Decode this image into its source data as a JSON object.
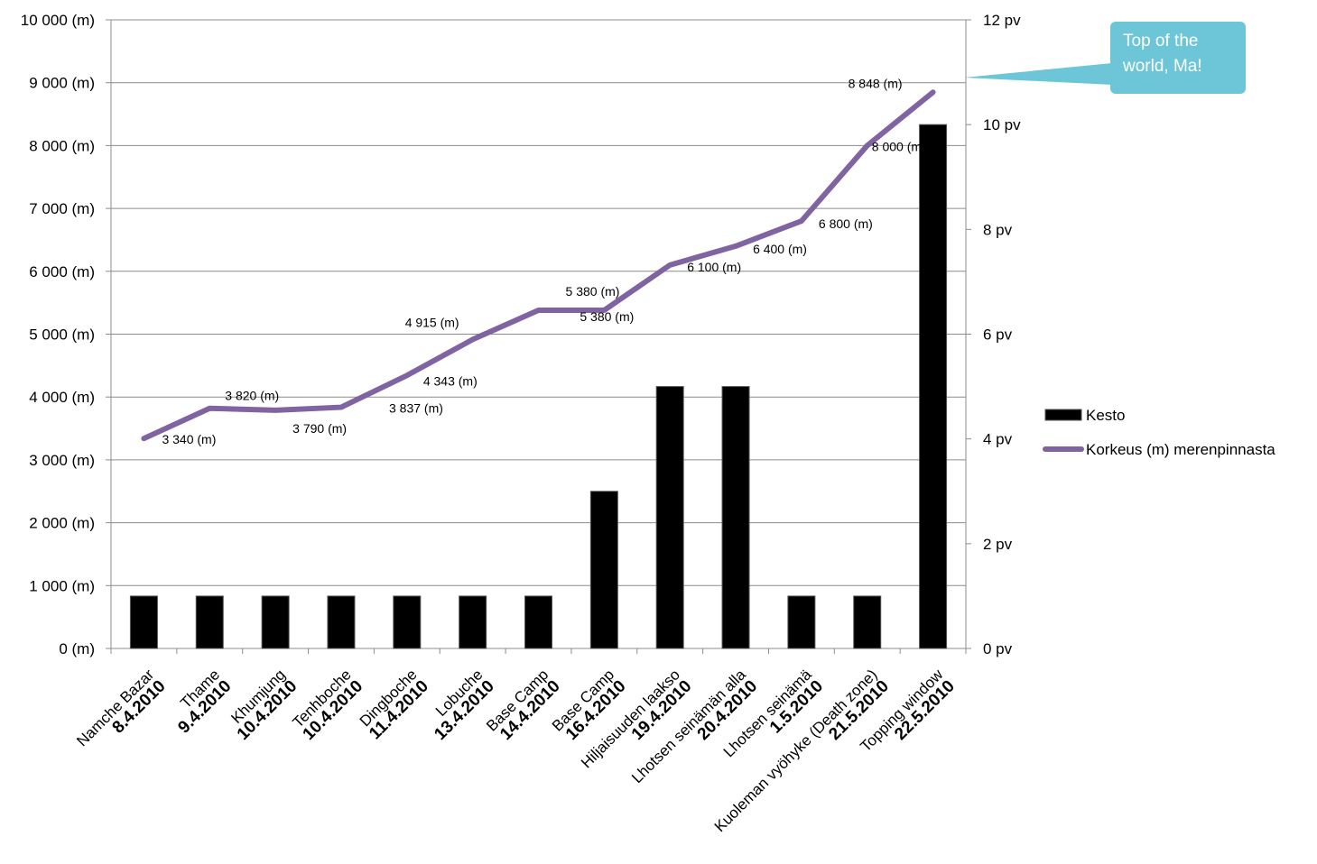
{
  "chart_data": {
    "type": "bar-line",
    "categories": [
      "Namche Bazar",
      "Thame",
      "Khumjung",
      "Tenhboche",
      "Dingboche",
      "Lobuche",
      "Base Camp",
      "Base Camp",
      "Hiljaisuuden laakso",
      "Lhotsen seinämän alla",
      "Lhotsen seinämä",
      "Kuoleman vyöhyke (Death zone)",
      "Topping window"
    ],
    "dates": [
      "8.4.2010",
      "9.4.2010",
      "10.4.2010",
      "10.4.2010",
      "11.4.2010",
      "13.4.2010",
      "14.4.2010",
      "16.4.2010",
      "19.4.2010",
      "20.4.2010",
      "1.5.2010",
      "21.5.2010",
      "22.5.2010"
    ],
    "series": [
      {
        "name": "Kesto",
        "type": "bar",
        "axis": "y2",
        "color": "#000000",
        "values": [
          1,
          1,
          1,
          1,
          1,
          1,
          1,
          3,
          5,
          5,
          1,
          1,
          10
        ]
      },
      {
        "name": "Korkeus (m) merenpinnasta",
        "type": "line",
        "color": "#8064a2",
        "values": [
          3340,
          3820,
          3790,
          3837,
          4343,
          4915,
          5380,
          5380,
          6100,
          6400,
          6800,
          8000,
          8848
        ],
        "value_labels": [
          "3 340 (m)",
          "3 820 (m)",
          "3 790 (m)",
          "3 837 (m)",
          "4 343 (m)",
          "4 915 (m)",
          "5 380 (m)",
          "5 380 (m)",
          "6 100 (m)",
          "6 400 (m)",
          "6 800 (m)",
          "8 000 (m)",
          "8 848 (m)"
        ]
      }
    ],
    "ylim": [
      0,
      10000
    ],
    "yticks": [
      {
        "value": 0,
        "label": "0 (m)"
      },
      {
        "value": 1000,
        "label": "1 000 (m)"
      },
      {
        "value": 2000,
        "label": "2 000 (m)"
      },
      {
        "value": 3000,
        "label": "3 000 (m)"
      },
      {
        "value": 4000,
        "label": "4 000 (m)"
      },
      {
        "value": 5000,
        "label": "5 000 (m)"
      },
      {
        "value": 6000,
        "label": "6 000 (m)"
      },
      {
        "value": 7000,
        "label": "7 000 (m)"
      },
      {
        "value": 8000,
        "label": "8 000 (m)"
      },
      {
        "value": 9000,
        "label": "9 000 (m)"
      },
      {
        "value": 10000,
        "label": "10 000 (m)"
      }
    ],
    "y2lim": [
      0,
      12
    ],
    "y2ticks": [
      {
        "value": 0,
        "label": "0 pv"
      },
      {
        "value": 2,
        "label": "2 pv"
      },
      {
        "value": 4,
        "label": "4 pv"
      },
      {
        "value": 6,
        "label": "6 pv"
      },
      {
        "value": 8,
        "label": "8 pv"
      },
      {
        "value": 10,
        "label": "10 pv"
      },
      {
        "value": 12,
        "label": "12 pv"
      }
    ],
    "grid": true,
    "legend": "right",
    "annotation": "Top of the world, Ma!"
  }
}
